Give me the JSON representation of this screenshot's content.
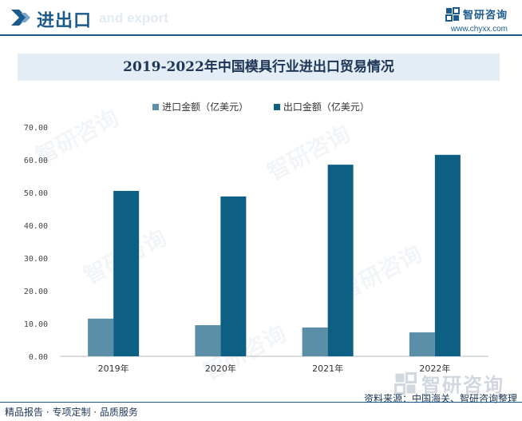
{
  "header": {
    "title": "进出口",
    "subtitle": "and export",
    "brand_name": "智研咨询",
    "brand_url": "www.chyxx.com"
  },
  "colors": {
    "accent": "#1a5a8c",
    "import": "#5b8fa8",
    "export": "#0e5f84"
  },
  "watermark": {
    "text": "智研咨询"
  },
  "footer": {
    "left": "精品报告 · 专项定制 · 品质服务",
    "source": "资料来源：中国海关、智研咨询整理"
  },
  "chart_data": {
    "type": "bar",
    "title": "2019-2022年中国模具行业进出口贸易情况",
    "categories": [
      "2019年",
      "2020年",
      "2021年",
      "2022年"
    ],
    "series": [
      {
        "name": "进口金额（亿美元）",
        "values": [
          11.5,
          9.5,
          8.8,
          7.3
        ]
      },
      {
        "name": "出口金额（亿美元）",
        "values": [
          50.5,
          48.8,
          58.5,
          61.5
        ]
      }
    ],
    "ylim": [
      0,
      70
    ],
    "yticks": [
      "0.00",
      "10.00",
      "20.00",
      "30.00",
      "40.00",
      "50.00",
      "60.00",
      "70.00"
    ],
    "legend_position": "top-center",
    "grid": false
  }
}
